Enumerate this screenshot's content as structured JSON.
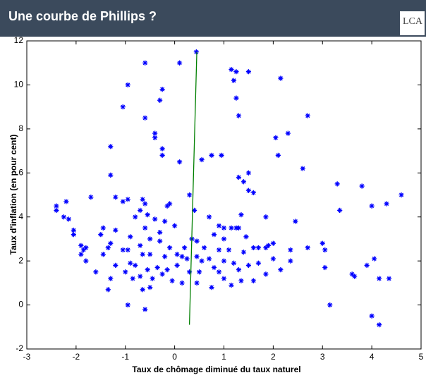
{
  "header": {
    "title": "Une courbe de Phillips ?",
    "logo": "LCA"
  },
  "chart_data": {
    "type": "scatter",
    "xlabel": "Taux de chômage diminué du taux naturel",
    "ylabel": "Taux d'inflation (en pour cent)",
    "xlim": [
      -3,
      5
    ],
    "xticks": [
      -3,
      -2,
      -1,
      0,
      1,
      2,
      3,
      4,
      5
    ],
    "ylim": [
      -2,
      12
    ],
    "yticks": [
      -2,
      0,
      2,
      4,
      6,
      8,
      10,
      12
    ],
    "grid": false,
    "series": [
      {
        "type": "scatter",
        "color": "#0000ff",
        "x": [
          0.44,
          -0.6,
          0.1,
          1.15,
          1.25,
          1.5,
          2.15,
          1.2,
          -0.95,
          -0.25,
          -0.3,
          1.25,
          -1.05,
          1.3,
          -0.6,
          2.7,
          2.3,
          -0.4,
          -0.4,
          2.05,
          -1.3,
          -0.25,
          -0.25,
          0.75,
          0.95,
          2.1,
          0.55,
          0.1,
          2.6,
          -1.3,
          1.5,
          1.3,
          1.4,
          1.5,
          1.6,
          3.3,
          3.8,
          0.3,
          4.6,
          -1.7,
          -1.2,
          -0.95,
          -0.65,
          -0.6,
          -1.05,
          -0.15,
          -0.1,
          -2.4,
          -2.4,
          -2.2,
          -2.25,
          -2.15,
          -0.7,
          -0.55,
          0.4,
          4.0,
          4.3,
          3.35,
          1.35,
          1.85,
          0.7,
          -0.8,
          -0.4,
          -0.2,
          0.0,
          -1.45,
          -1.2,
          -0.6,
          -0.3,
          0.9,
          1.0,
          1.15,
          1.25,
          1.3,
          2.45,
          -2.05,
          -2.05,
          -1.5,
          -0.9,
          -0.5,
          0.35,
          0.45,
          0.8,
          1.0,
          1.45,
          -1.9,
          -1.85,
          -1.8,
          -1.35,
          -1.3,
          -1.05,
          -0.95,
          -0.7,
          -0.3,
          -0.1,
          0.2,
          0.6,
          0.9,
          1.1,
          1.4,
          1.6,
          1.7,
          1.85,
          1.9,
          2.0,
          2.35,
          2.7,
          3.0,
          3.05,
          -1.9,
          -1.8,
          -1.45,
          -0.65,
          -0.5,
          -0.2,
          0.05,
          0.15,
          0.25,
          0.45,
          0.55,
          0.7,
          1.0,
          1.2,
          1.5,
          1.7,
          2.0,
          2.35,
          -1.2,
          -0.9,
          -0.8,
          -0.55,
          -0.35,
          -0.15,
          0.05,
          0.3,
          0.5,
          0.8,
          0.9,
          1.3,
          1.85,
          2.15,
          3.05,
          3.9,
          4.05,
          -1.6,
          -1.3,
          -1.0,
          -0.85,
          -0.7,
          -0.45,
          -0.25,
          -0.05,
          0.15,
          0.45,
          0.75,
          1.0,
          1.15,
          1.35,
          1.6,
          3.65,
          3.6,
          4.15,
          4.35,
          -1.35,
          -0.65,
          -0.5,
          -0.95,
          -0.6,
          3.15,
          4.0,
          4.15
        ],
        "values": [
          11.5,
          11.0,
          11.0,
          10.7,
          10.6,
          10.6,
          10.3,
          10.2,
          10.0,
          9.8,
          9.3,
          9.4,
          9.0,
          8.6,
          8.5,
          8.6,
          7.8,
          7.8,
          7.6,
          7.6,
          7.2,
          7.1,
          6.8,
          6.8,
          6.8,
          6.8,
          6.6,
          6.5,
          6.2,
          5.9,
          6.0,
          5.8,
          5.6,
          5.2,
          5.1,
          5.5,
          5.4,
          5.0,
          5.0,
          4.9,
          4.9,
          4.8,
          4.8,
          4.6,
          4.7,
          4.5,
          4.6,
          4.5,
          4.3,
          4.7,
          4.0,
          3.9,
          4.3,
          4.1,
          4.3,
          4.5,
          4.6,
          4.3,
          4.1,
          4.0,
          4.0,
          4.0,
          3.9,
          3.8,
          3.6,
          3.5,
          3.4,
          3.5,
          3.3,
          3.6,
          3.5,
          3.5,
          3.5,
          3.5,
          3.8,
          3.4,
          3.2,
          3.2,
          3.1,
          3.0,
          3.0,
          2.9,
          3.2,
          3.0,
          3.1,
          2.7,
          2.5,
          2.6,
          2.6,
          2.8,
          2.5,
          2.5,
          2.7,
          2.9,
          2.6,
          2.6,
          2.6,
          2.5,
          2.5,
          2.4,
          2.6,
          2.6,
          2.6,
          2.7,
          2.8,
          2.5,
          2.6,
          2.8,
          2.5,
          2.3,
          2.0,
          2.3,
          2.3,
          2.3,
          2.2,
          2.3,
          2.2,
          2.1,
          2.2,
          2.0,
          2.1,
          2.0,
          1.9,
          1.8,
          1.9,
          2.1,
          2.0,
          1.8,
          1.9,
          1.8,
          1.6,
          1.7,
          1.6,
          1.8,
          1.5,
          1.5,
          1.7,
          1.5,
          1.6,
          1.4,
          1.6,
          1.7,
          1.8,
          2.1,
          1.5,
          1.2,
          1.5,
          1.2,
          1.3,
          1.2,
          1.4,
          1.1,
          1.0,
          1.0,
          0.8,
          1.2,
          0.9,
          1.1,
          1.1,
          1.3,
          1.4,
          1.2,
          1.2,
          0.7,
          0.7,
          0.8,
          0.0,
          -0.2,
          0.0,
          -0.5,
          -0.9
        ]
      },
      {
        "type": "line",
        "color": "#008000",
        "x": [
          0.3,
          0.45
        ],
        "values": [
          -0.9,
          11.5
        ]
      }
    ]
  }
}
